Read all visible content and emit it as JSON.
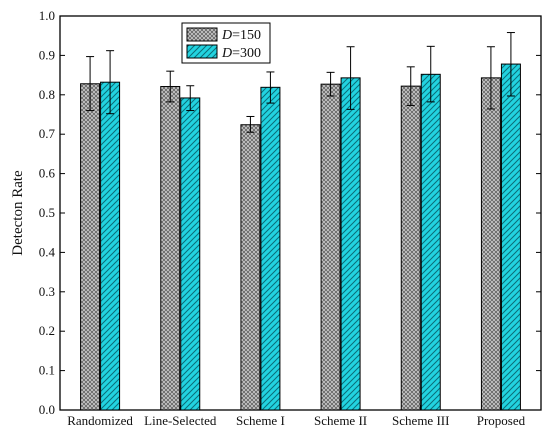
{
  "chart_data": {
    "type": "bar",
    "title": "",
    "xlabel": "",
    "ylabel": "Detecton Rate",
    "ylim": [
      0,
      1
    ],
    "yticks": [
      "0.0",
      "0.1",
      "0.2",
      "0.3",
      "0.4",
      "0.5",
      "0.6",
      "0.7",
      "0.8",
      "0.9",
      "1.0"
    ],
    "categories": [
      "Randomized",
      "Line-Selected",
      "Scheme I",
      "Scheme II",
      "Scheme III",
      "Proposed"
    ],
    "series": [
      {
        "name": "D=150",
        "name_italic": "D",
        "name_rest": "=150",
        "pattern": "crosshatch-gray",
        "values": [
          0.828,
          0.821,
          0.724,
          0.827,
          0.822,
          0.843
        ],
        "error_low": [
          0.76,
          0.782,
          0.705,
          0.797,
          0.773,
          0.764
        ],
        "error_high": [
          0.897,
          0.86,
          0.745,
          0.857,
          0.871,
          0.922
        ]
      },
      {
        "name": "D=300",
        "name_italic": "D",
        "name_rest": "=300",
        "pattern": "diagonal-cyan",
        "values": [
          0.832,
          0.792,
          0.819,
          0.843,
          0.852,
          0.878
        ],
        "error_low": [
          0.752,
          0.76,
          0.779,
          0.763,
          0.782,
          0.797
        ],
        "error_high": [
          0.912,
          0.823,
          0.858,
          0.922,
          0.923,
          0.958
        ]
      }
    ],
    "grid": false,
    "legend": "top-left",
    "colors": {
      "series1_fill": "#c8c8c8",
      "series2_fill": "#22d3e0",
      "axis": "#000000"
    }
  }
}
